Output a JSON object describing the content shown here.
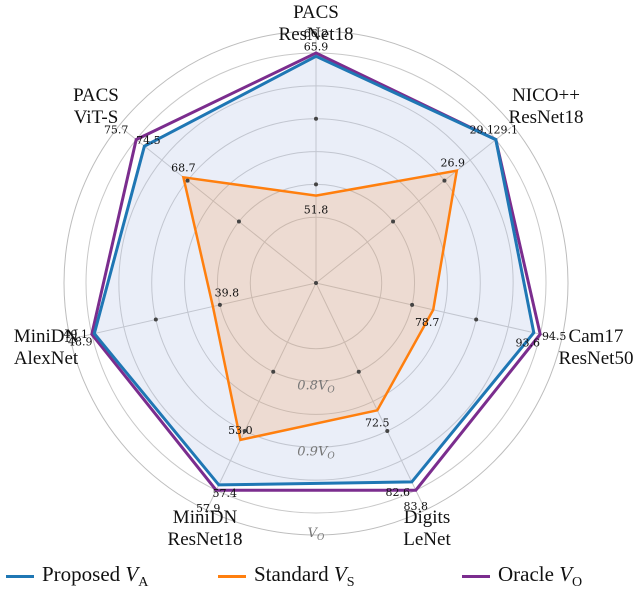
{
  "chart_data": {
    "type": "radar",
    "axes": [
      {
        "label": [
          "PACS",
          "ResNet18"
        ],
        "proposed": "65.9",
        "standard": "51.8",
        "oracle": "66.2"
      },
      {
        "label": [
          "NICO++",
          "ResNet18"
        ],
        "proposed": "29.1",
        "standard": "26.9",
        "oracle": "29.1"
      },
      {
        "label": [
          "Cam17",
          "ResNet50"
        ],
        "proposed": "93.6",
        "standard": "78.7",
        "oracle": "94.5"
      },
      {
        "label": [
          "Digits",
          "LeNet"
        ],
        "proposed": "82.6",
        "standard": "72.5",
        "oracle": "83.8"
      },
      {
        "label": [
          "MiniDN",
          "ResNet18"
        ],
        "proposed": "57.4",
        "standard": "53.0",
        "oracle": "57.9"
      },
      {
        "label": [
          "MiniDN",
          "AlexNet"
        ],
        "proposed": "48.9",
        "standard": "39.8",
        "oracle": "49.1"
      },
      {
        "label": [
          "PACS",
          "ViT-S"
        ],
        "proposed": "74.5",
        "standard": "68.7",
        "oracle": "75.7"
      }
    ],
    "relative_to_oracle": {
      "proposed": [
        0.995,
        1.0,
        0.99,
        0.986,
        0.991,
        0.996,
        0.984
      ],
      "standard": [
        0.783,
        0.924,
        0.833,
        0.865,
        0.915,
        0.811,
        0.908
      ],
      "oracle": [
        1,
        1,
        1,
        1,
        1,
        1,
        1
      ]
    },
    "rings": [
      {
        "fraction": 0.8,
        "label": "0.8V_O"
      },
      {
        "fraction": 0.9,
        "label": "0.9V_O"
      },
      {
        "fraction": 1.0,
        "label": "V_O"
      }
    ],
    "radial_range": [
      0.65,
      1.0
    ],
    "grid": true,
    "legend_position": "bottom",
    "series": [
      {
        "key": "proposed",
        "name": "Proposed V_A",
        "color": "#1f77b4"
      },
      {
        "key": "standard",
        "name": "Standard V_S",
        "color": "#ff7f0e"
      },
      {
        "key": "oracle",
        "name": "Oracle V_O",
        "color": "#7b2d8e"
      }
    ]
  }
}
